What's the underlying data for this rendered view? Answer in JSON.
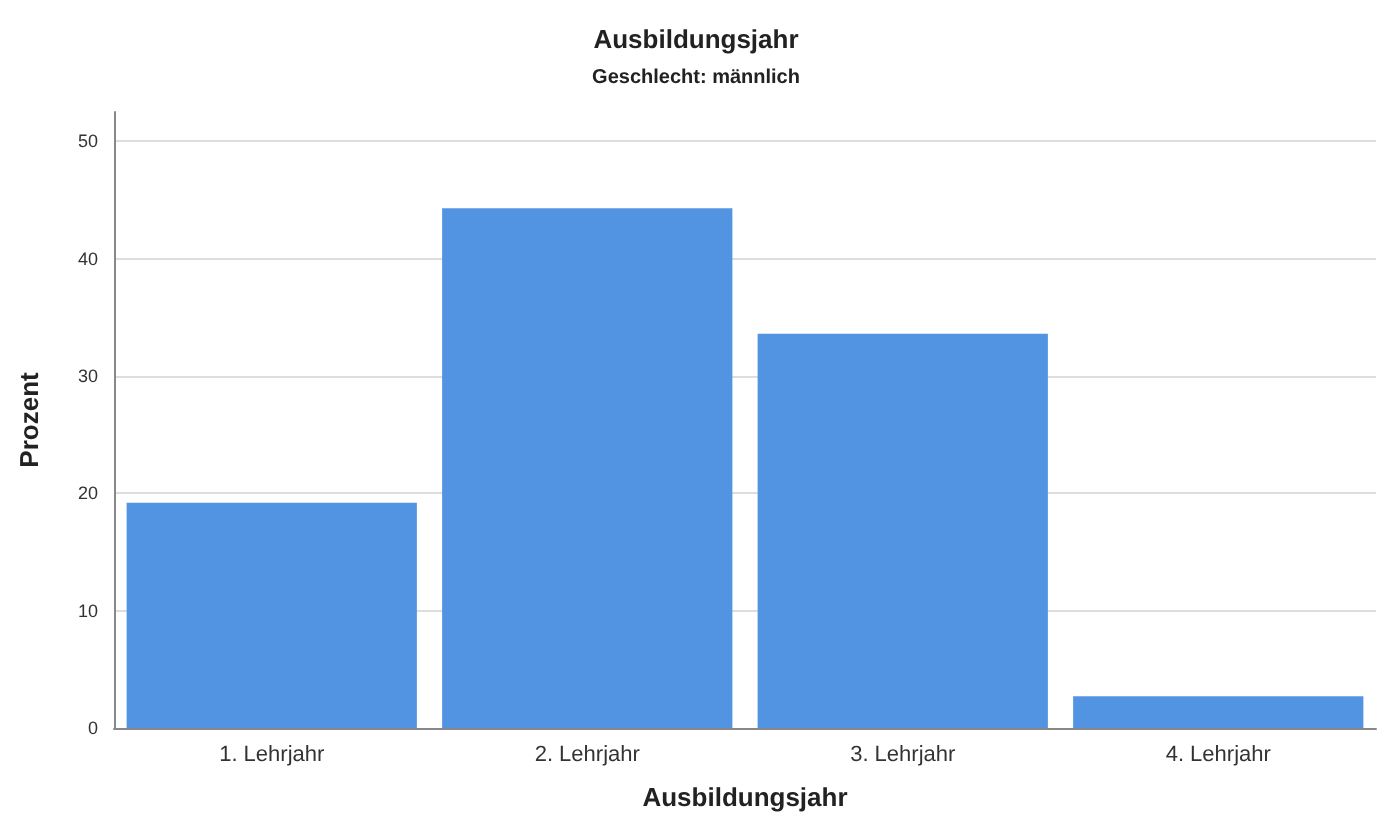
{
  "chart_data": {
    "type": "bar",
    "title": "Ausbildungsjahr",
    "subtitle": "Geschlecht: männlich",
    "xlabel": "Ausbildungsjahr",
    "ylabel": "Prozent",
    "categories": [
      "1. Lehrjahr",
      "2. Lehrjahr",
      "3. Lehrjahr",
      "4. Lehrjahr"
    ],
    "values": [
      19.2,
      44.3,
      33.6,
      2.7
    ],
    "color": "#5294e2",
    "ylim": [
      0,
      52.5
    ],
    "yticks": [
      0,
      10,
      20,
      30,
      40,
      50
    ],
    "grid": "y"
  }
}
